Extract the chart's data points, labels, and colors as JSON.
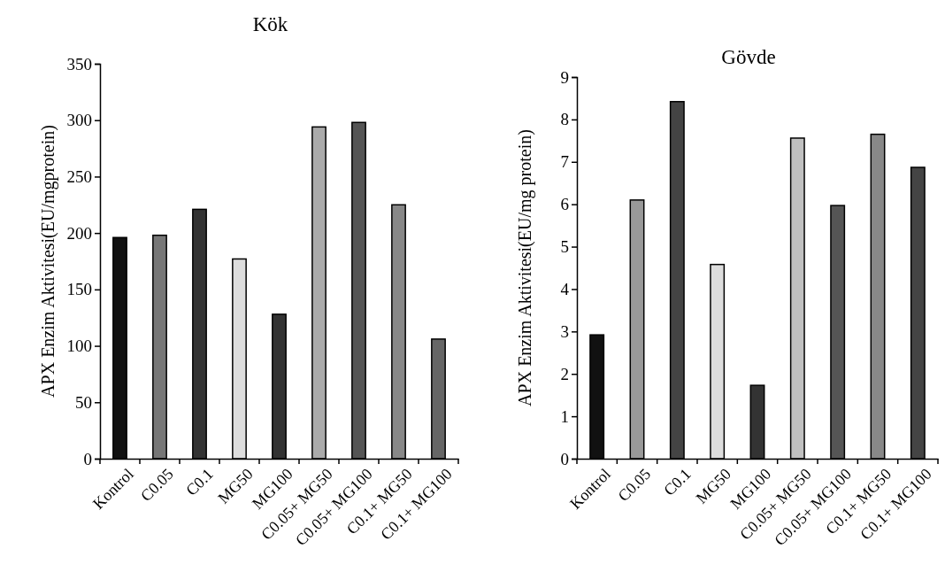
{
  "chart_data": [
    {
      "type": "bar",
      "title": "Kök",
      "ylabel": "APX Enzim Aktivitesi(EU/mgprotein)",
      "categories": [
        "Kontrol",
        "C0.05",
        "C0.1",
        "MG50",
        "MG100",
        "C0.05+ MG50",
        "C0.05+ MG100",
        "C0.1+ MG50",
        "C0.1+ MG100"
      ],
      "values": [
        196,
        198,
        221,
        177,
        128,
        294,
        298,
        225,
        106
      ],
      "colors": [
        "#111111",
        "#777777",
        "#333333",
        "#dddddd",
        "#333333",
        "#aaaaaa",
        "#555555",
        "#888888",
        "#666666"
      ],
      "ylim": [
        0,
        350
      ],
      "yticks": [
        0,
        50,
        100,
        150,
        200,
        250,
        300,
        350
      ],
      "grid": false
    },
    {
      "type": "bar",
      "title": "Gövde",
      "ylabel": "APX Enzim Aktivitesi(EU/mg protein)",
      "categories": [
        "Kontrol",
        "C0.05",
        "C0.1",
        "MG50",
        "MG100",
        "C0.05+ MG50",
        "C0.05+ MG100",
        "C0.1+ MG50",
        "C0.1+ MG100"
      ],
      "values": [
        2.92,
        6.1,
        8.42,
        4.58,
        1.73,
        7.56,
        5.97,
        7.65,
        6.87
      ],
      "colors": [
        "#111111",
        "#999999",
        "#444444",
        "#dddddd",
        "#333333",
        "#c0c0c0",
        "#555555",
        "#888888",
        "#444444"
      ],
      "ylim": [
        0,
        9
      ],
      "yticks": [
        0,
        1,
        2,
        3,
        4,
        5,
        6,
        7,
        8,
        9
      ],
      "grid": false
    }
  ]
}
